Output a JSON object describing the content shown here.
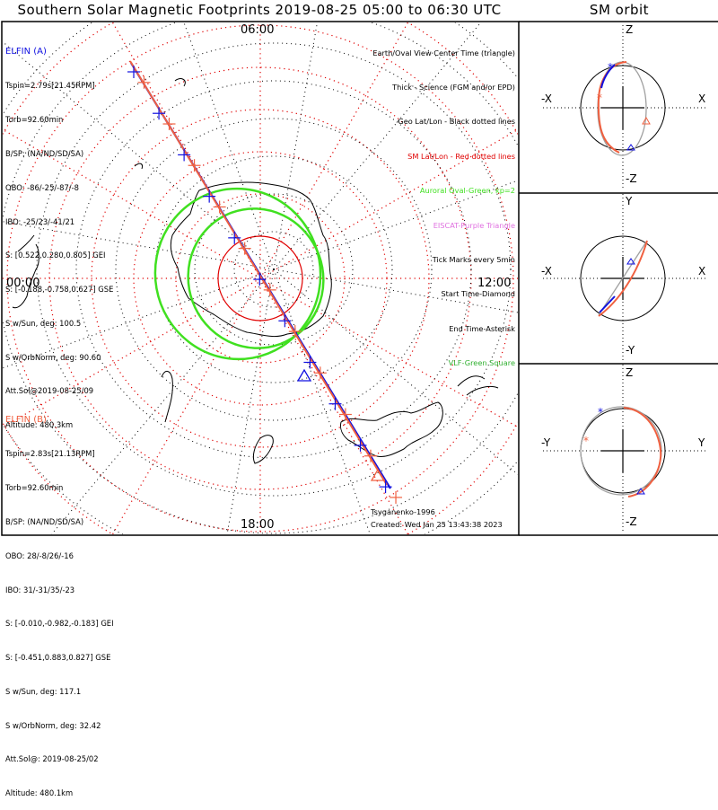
{
  "title": "Southern Solar Magnetic Footprints 2019-08-25 05:00 to 06:30 UTC",
  "orbit_panel_title": "SM orbit",
  "colors": {
    "elfin_a": "#1010e0",
    "elfin_b": "#f06040",
    "grid_sm": "#e00000",
    "grid_geo": "#000000",
    "aurora": "#40e020",
    "eiscat": "#e070e0",
    "vlf": "#30b030",
    "orbit_back": "#a0a0a0"
  },
  "mlt_labels": {
    "top": "06:00",
    "left": "00:00",
    "right": "12:00",
    "bottom": "18:00"
  },
  "elfin_a": {
    "name": "ELFIN (A)",
    "lines": [
      "Tspin=2.79s[21.45RPM]",
      "Torb=92.60min",
      "B/SP: (NA/ND/SD/SA)",
      "OBO: -86/-25/-87/-8",
      "IBO: -25/23/-41/21",
      "S: [0.522,0.280,0.805] GEI",
      "S: [-0.188,-0.758,0.627] GSE",
      "S w/Sun, deg: 100.5",
      "S w/OrbNorm, deg: 90.60",
      "Att.Sol@2019-08-25/09",
      "Altitude: 480.3km"
    ]
  },
  "elfin_b": {
    "name": "ELFIN (B)",
    "lines": [
      "Tspin=2.83s[21.13RPM]",
      "Torb=92.60min",
      "B/SP: (NA/ND/SD/SA)",
      "OBO: 28/-8/26/-16",
      "IBO: 31/-31/35/-23",
      "S: [-0.010,-0.982,-0.183] GEI",
      "S: [-0.451,0.883,0.827] GSE",
      "S w/Sun, deg: 117.1",
      "S w/OrbNorm, deg: 32.42",
      "Att.Sol@: 2019-08-25/02",
      "Altitude: 480.1km"
    ]
  },
  "legend": [
    {
      "text": "Earth/Oval View Center Time (triangle)",
      "color": "#000000"
    },
    {
      "text": "Thick - Science (FGM and/or EPD)",
      "color": "#000000"
    },
    {
      "text": "Geo Lat/Lon - Black dotted lines",
      "color": "#000000"
    },
    {
      "text": "SM Lat/Lon - Red dotted lines",
      "color": "#e00000"
    },
    {
      "text": "Auroral Oval-Green, kp=2",
      "color": "#40e020"
    },
    {
      "text": "EISCAT-Purple Triangle",
      "color": "#e070e0"
    },
    {
      "text": "Tick Marks every 5min",
      "color": "#000000"
    },
    {
      "text": "Start Time-Diamond",
      "color": "#000000"
    },
    {
      "text": "End Time-Asterisk",
      "color": "#000000"
    },
    {
      "text": "VLF-Green Square",
      "color": "#30b030"
    }
  ],
  "model": "Tsyganenko-1996",
  "created": "Created: Wed Jan 25 13:43:38 2023",
  "orbit_panels": [
    {
      "name": "xz",
      "top": "Z",
      "bottom": "-Z",
      "left": "-X",
      "right": "X"
    },
    {
      "name": "xy",
      "top": "Y",
      "bottom": "-Y",
      "left": "-X",
      "right": "X"
    },
    {
      "name": "yz",
      "top": "Z",
      "bottom": "-Z",
      "left": "-Y",
      "right": "Y"
    }
  ]
}
